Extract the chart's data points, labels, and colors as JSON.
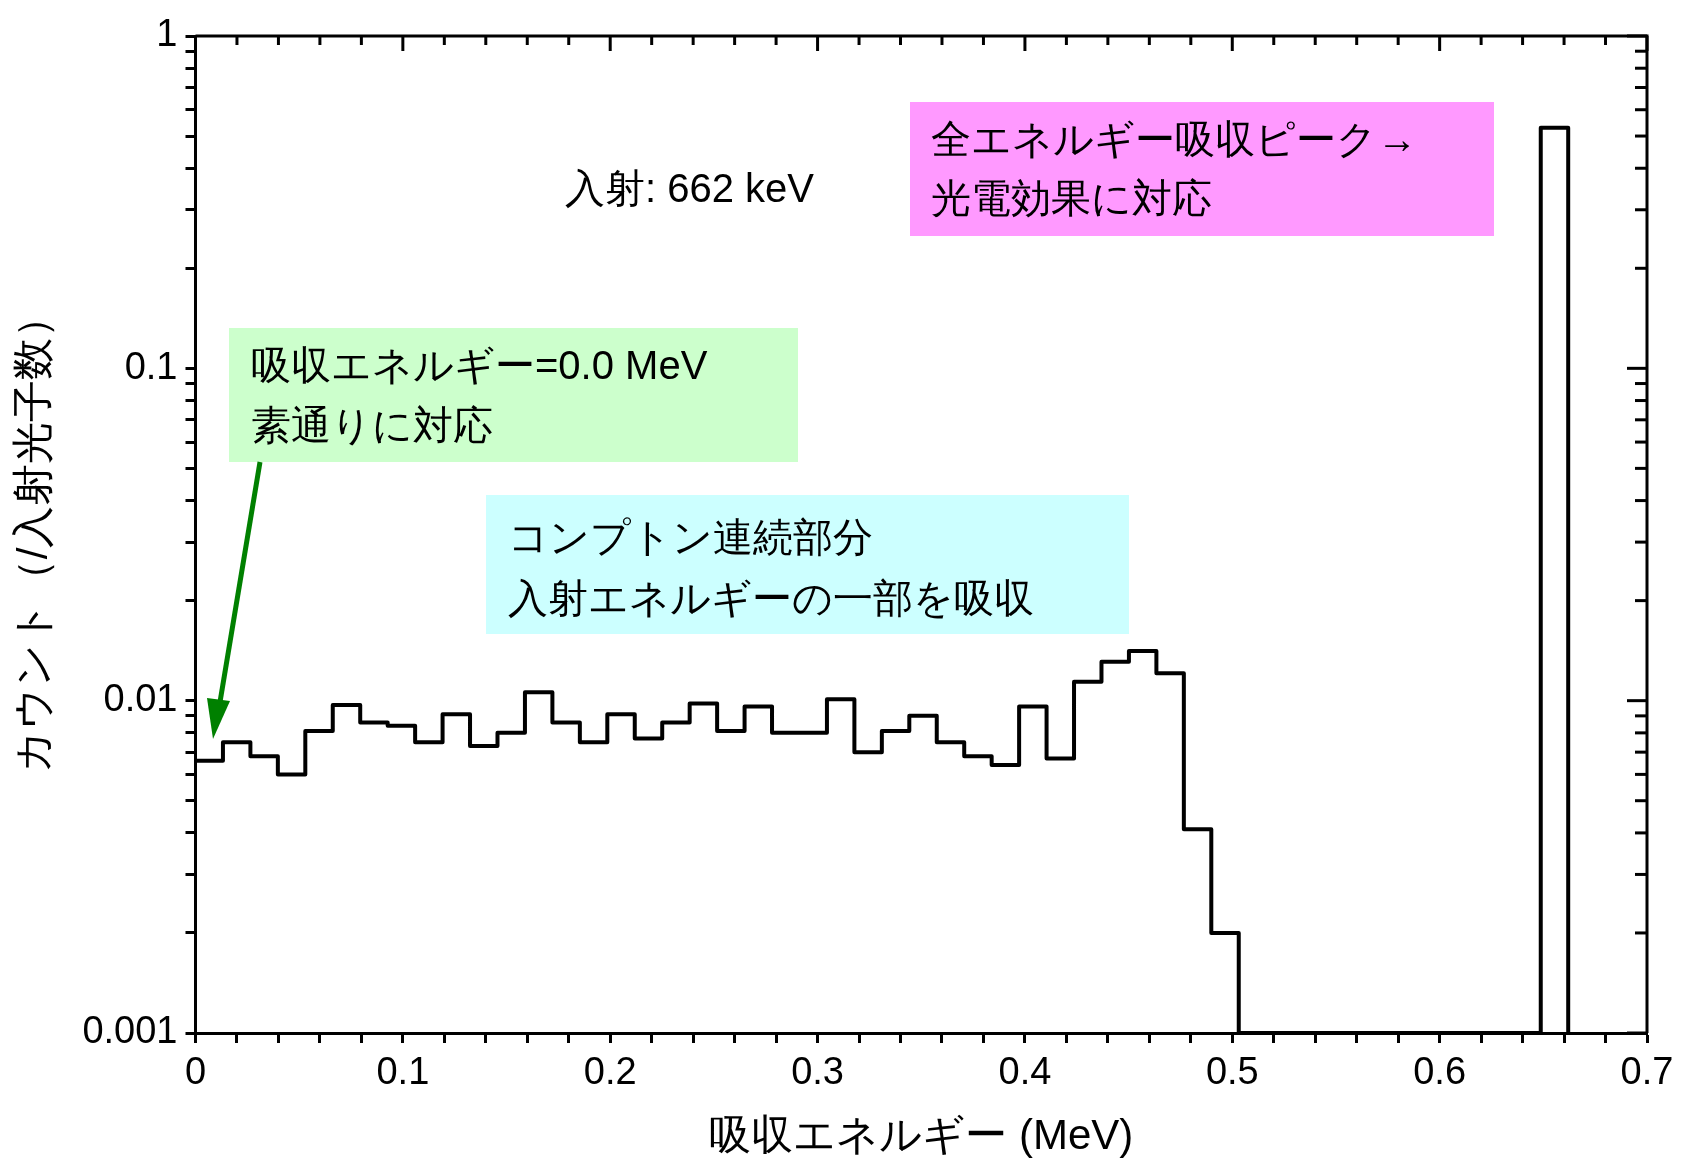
{
  "chart_data": {
    "type": "step",
    "xlabel": "吸収エネルギー (MeV)",
    "ylabel": "カウント（/入射光子数）",
    "x": [
      0,
      0.01324,
      0.02648,
      0.03972,
      0.05296,
      0.0662,
      0.07944,
      0.09268,
      0.10592,
      0.11916,
      0.1324,
      0.14564,
      0.15888,
      0.17212,
      0.18536,
      0.1986,
      0.21184,
      0.22508,
      0.23832,
      0.25156,
      0.2648,
      0.27804,
      0.29128,
      0.30452,
      0.31776,
      0.331,
      0.34424,
      0.35748,
      0.37072,
      0.38396,
      0.3972,
      0.41044,
      0.42368,
      0.43692,
      0.45016,
      0.4634,
      0.47664,
      0.48988,
      0.50312,
      0.51636,
      0.5296,
      0.54284,
      0.55608,
      0.56932,
      0.58256,
      0.5958,
      0.60904,
      0.62228,
      0.63552,
      0.64876,
      0.662
    ],
    "values": [
      0.0066,
      0.0075,
      0.0068,
      0.006,
      0.0081,
      0.0097,
      0.0086,
      0.0084,
      0.0075,
      0.0091,
      0.0073,
      0.008,
      0.0106,
      0.0086,
      0.0075,
      0.0091,
      0.0077,
      0.0086,
      0.0098,
      0.0081,
      0.0096,
      0.008,
      0.008,
      0.0101,
      0.007,
      0.0081,
      0.009,
      0.0075,
      0.0068,
      0.0064,
      0.0096,
      0.0067,
      0.0114,
      0.0131,
      0.0141,
      0.0121,
      0.0041,
      0.002,
      0.001,
      0.001,
      0.001,
      0.001,
      0.001,
      0.001,
      0.001,
      0.001,
      0.001,
      0.001,
      0.001,
      0.53,
      0.001
    ],
    "color": "#000000",
    "log": "y",
    "xlim": [
      0,
      0.7
    ],
    "ylim": [
      0.001,
      1
    ],
    "xticks": [
      0,
      {
        "value": 0.02,
        "label": null
      },
      {
        "value": 0.04,
        "label": null
      },
      {
        "value": 0.06,
        "label": null
      },
      {
        "value": 0.08,
        "label": null
      },
      0.1,
      {
        "value": 0.12,
        "label": null
      },
      {
        "value": 0.14,
        "label": null
      },
      {
        "value": 0.16,
        "label": null
      },
      {
        "value": 0.18,
        "label": null
      },
      0.2,
      {
        "value": 0.22,
        "label": null
      },
      {
        "value": 0.24,
        "label": null
      },
      {
        "value": 0.26,
        "label": null
      },
      {
        "value": 0.28,
        "label": null
      },
      0.3,
      {
        "value": 0.32,
        "label": null
      },
      {
        "value": 0.34,
        "label": null
      },
      {
        "value": 0.36,
        "label": null
      },
      {
        "value": 0.38,
        "label": null
      },
      0.4,
      {
        "value": 0.42,
        "label": null
      },
      {
        "value": 0.44,
        "label": null
      },
      {
        "value": 0.46,
        "label": null
      },
      {
        "value": 0.48,
        "label": null
      },
      0.5,
      {
        "value": 0.52,
        "label": null
      },
      {
        "value": 0.54,
        "label": null
      },
      {
        "value": 0.56,
        "label": null
      },
      {
        "value": 0.58,
        "label": null
      },
      0.6,
      {
        "value": 0.62,
        "label": null
      },
      {
        "value": 0.64,
        "label": null
      },
      {
        "value": 0.66,
        "label": null
      },
      {
        "value": 0.68,
        "label": null
      },
      0.7
    ],
    "yticks": [
      0.001,
      {
        "value": 0.002,
        "label": null
      },
      {
        "value": 0.003,
        "label": null
      },
      {
        "value": 0.004,
        "label": null
      },
      {
        "value": 0.005,
        "label": null
      },
      {
        "value": 0.006,
        "label": null
      },
      {
        "value": 0.007,
        "label": null
      },
      {
        "value": 0.008,
        "label": null
      },
      {
        "value": 0.009,
        "label": null
      },
      0.01,
      {
        "value": 0.02,
        "label": null
      },
      {
        "value": 0.03,
        "label": null
      },
      {
        "value": 0.04,
        "label": null
      },
      {
        "value": 0.05,
        "label": null
      },
      {
        "value": 0.06,
        "label": null
      },
      {
        "value": 0.07,
        "label": null
      },
      {
        "value": 0.08,
        "label": null
      },
      {
        "value": 0.09,
        "label": null
      },
      0.1,
      {
        "value": 0.2,
        "label": null
      },
      {
        "value": 0.3,
        "label": null
      },
      {
        "value": 0.4,
        "label": null
      },
      {
        "value": 0.5,
        "label": null
      },
      {
        "value": 0.6,
        "label": null
      },
      {
        "value": 0.7,
        "label": null
      },
      {
        "value": 0.8,
        "label": null
      },
      {
        "value": 0.9,
        "label": null
      },
      1
    ],
    "annotations": [
      "入射: 662 keV",
      "全エネルギー吸収ピーク→",
      "光電効果に対応",
      "吸収エネルギー=0.0 MeV",
      "素通りに対応",
      "コンプトン連続部分",
      "入射エネルギーの一部を吸収"
    ]
  }
}
